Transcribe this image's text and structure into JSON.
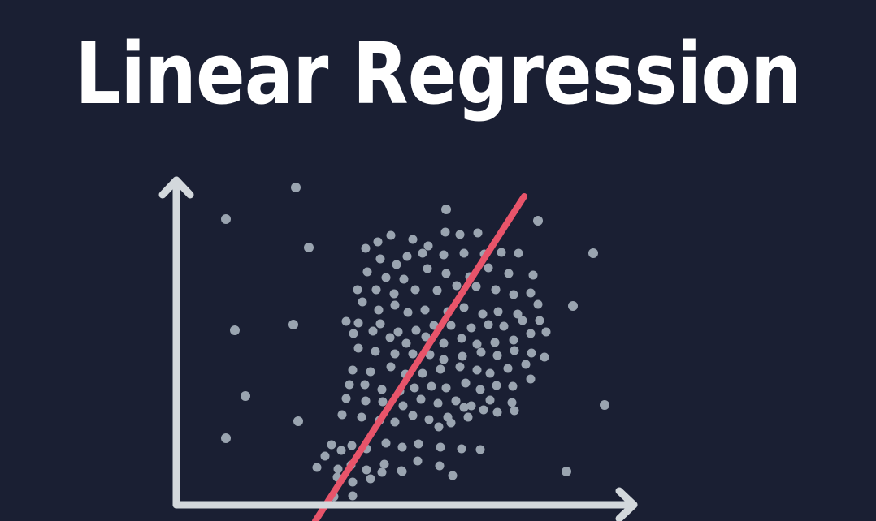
{
  "title": "Linear Regression",
  "colors": {
    "background": "#1a1f33",
    "title": "#ffffff",
    "axes": "#d3d8dc",
    "points": "#9aa4b0",
    "regression_line": "#e8546a"
  },
  "icons": {
    "y_axis_head": "arrow-up-icon",
    "x_axis_head": "arrow-right-icon"
  },
  "description_elements": [
    "axes",
    "scatter-points",
    "regression-line"
  ]
}
